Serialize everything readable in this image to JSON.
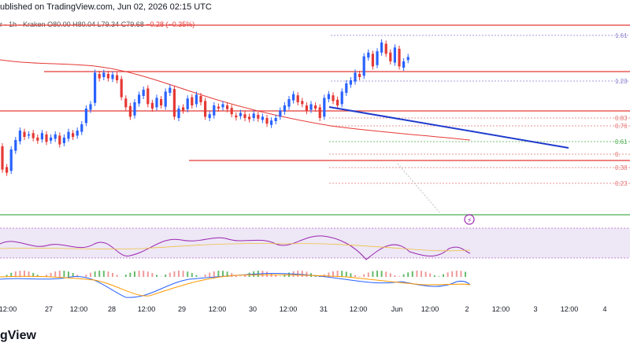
{
  "header": {
    "published": "ublished on TradingView.com, Jun 02, 2026 02:15 UTC",
    "symbol_fragment": "r",
    "interval": "1h",
    "exchange": "Kraken",
    "open": "O80.00",
    "high": "H80.04",
    "low": "L79.34",
    "close": "C79.68",
    "change": "−0.28 (−0.35%)"
  },
  "brand": {
    "text": "gView"
  },
  "colors": {
    "up": "#2962ff",
    "down": "#e53935",
    "resistance": "#e53935",
    "trendline": "#1f3bcc",
    "support": "#4caf50",
    "fib": "#e57373",
    "fib_mid": "#4caf50",
    "fib_top": "#8a7ed0",
    "rsi": "#9c27b0",
    "macd_line": "#2962ff",
    "signal_line": "#ff9800",
    "rsi_band": "#ede7f6"
  },
  "fib_labels": [
    "1.61",
    "1.23",
    "0.83",
    "0.76",
    "0.61",
    "0.",
    "0.38",
    "0.23"
  ],
  "x_axis_labels": [
    "12:00",
    "27",
    "12:00",
    "28",
    "12:00",
    "29",
    "12:00",
    "30",
    "12:00",
    "31",
    "12:00",
    "Jun",
    "12:00",
    "2",
    "12:00",
    "3",
    "12:00",
    "4"
  ],
  "chart_data": {
    "type": "candlestick",
    "interval": "1h",
    "x_start": "May 26 12:00",
    "x_end": "Jun 04",
    "x_tick_labels": [
      "12:00",
      "27",
      "12:00",
      "28",
      "12:00",
      "29",
      "12:00",
      "30",
      "12:00",
      "31",
      "12:00",
      "Jun",
      "12:00",
      "2",
      "12:00",
      "3",
      "12:00",
      "4"
    ],
    "fib_levels": [
      "1.61",
      "1.23",
      "0.83",
      "0.76",
      "0.61",
      "0.",
      "0.38",
      "0.23"
    ],
    "ohlc_last": {
      "open": 80.0,
      "high": 80.04,
      "low": 79.34,
      "close": 79.68,
      "change": -0.28,
      "change_pct": -0.35
    },
    "candles": [
      {
        "o": 105,
        "c": 68
      },
      {
        "o": 72,
        "c": 63
      },
      {
        "o": 66,
        "c": 100
      },
      {
        "o": 98,
        "c": 115
      },
      {
        "o": 113,
        "c": 130
      },
      {
        "o": 128,
        "c": 120
      },
      {
        "o": 122,
        "c": 124
      },
      {
        "o": 126,
        "c": 118
      },
      {
        "o": 119,
        "c": 114
      },
      {
        "o": 116,
        "c": 126
      },
      {
        "o": 124,
        "c": 112
      },
      {
        "o": 114,
        "c": 119
      },
      {
        "o": 117,
        "c": 124
      },
      {
        "o": 122,
        "c": 108
      },
      {
        "o": 110,
        "c": 119
      },
      {
        "o": 117,
        "c": 128
      },
      {
        "o": 126,
        "c": 120
      },
      {
        "o": 122,
        "c": 130
      },
      {
        "o": 128,
        "c": 140
      },
      {
        "o": 142,
        "c": 165
      },
      {
        "o": 163,
        "c": 172
      },
      {
        "o": 174,
        "c": 222
      },
      {
        "o": 220,
        "c": 213
      },
      {
        "o": 215,
        "c": 222
      },
      {
        "o": 220,
        "c": 213
      },
      {
        "o": 212,
        "c": 219
      },
      {
        "o": 218,
        "c": 210
      },
      {
        "o": 212,
        "c": 183
      },
      {
        "o": 181,
        "c": 167
      },
      {
        "o": 169,
        "c": 152
      },
      {
        "o": 154,
        "c": 175
      },
      {
        "o": 173,
        "c": 187
      },
      {
        "o": 185,
        "c": 195
      },
      {
        "o": 197,
        "c": 172
      },
      {
        "o": 174,
        "c": 165
      },
      {
        "o": 167,
        "c": 182
      },
      {
        "o": 180,
        "c": 170
      },
      {
        "o": 168,
        "c": 192
      },
      {
        "o": 190,
        "c": 198
      },
      {
        "o": 196,
        "c": 152
      },
      {
        "o": 150,
        "c": 165
      },
      {
        "o": 167,
        "c": 162
      },
      {
        "o": 164,
        "c": 181
      },
      {
        "o": 183,
        "c": 170
      },
      {
        "o": 172,
        "c": 187
      },
      {
        "o": 185,
        "c": 175
      },
      {
        "o": 177,
        "c": 152
      },
      {
        "o": 150,
        "c": 156
      },
      {
        "o": 154,
        "c": 170
      },
      {
        "o": 168,
        "c": 165
      },
      {
        "o": 167,
        "c": 172
      },
      {
        "o": 170,
        "c": 164
      },
      {
        "o": 166,
        "c": 156
      },
      {
        "o": 154,
        "c": 151
      },
      {
        "o": 153,
        "c": 158
      },
      {
        "o": 156,
        "c": 150
      },
      {
        "o": 152,
        "c": 148
      },
      {
        "o": 150,
        "c": 157
      },
      {
        "o": 155,
        "c": 149
      },
      {
        "o": 147,
        "c": 152
      },
      {
        "o": 150,
        "c": 141
      },
      {
        "o": 139,
        "c": 146
      },
      {
        "o": 145,
        "c": 150
      },
      {
        "o": 152,
        "c": 162
      },
      {
        "o": 160,
        "c": 170
      },
      {
        "o": 168,
        "c": 180
      },
      {
        "o": 178,
        "c": 188
      },
      {
        "o": 186,
        "c": 175
      },
      {
        "o": 177,
        "c": 172
      },
      {
        "o": 170,
        "c": 161
      },
      {
        "o": 163,
        "c": 172
      },
      {
        "o": 170,
        "c": 165
      },
      {
        "o": 167,
        "c": 150
      },
      {
        "o": 152,
        "c": 182
      },
      {
        "o": 180,
        "c": 188
      },
      {
        "o": 186,
        "c": 177
      },
      {
        "o": 179,
        "c": 170
      },
      {
        "o": 172,
        "c": 192
      },
      {
        "o": 190,
        "c": 205
      },
      {
        "o": 203,
        "c": 210
      },
      {
        "o": 208,
        "c": 222
      },
      {
        "o": 220,
        "c": 215
      },
      {
        "o": 217,
        "c": 248
      },
      {
        "o": 246,
        "c": 254
      },
      {
        "o": 252,
        "c": 232
      },
      {
        "o": 234,
        "c": 256
      },
      {
        "o": 254,
        "c": 270
      },
      {
        "o": 268,
        "c": 252
      },
      {
        "o": 254,
        "c": 240
      },
      {
        "o": 238,
        "c": 262
      },
      {
        "o": 260,
        "c": 232
      },
      {
        "o": 230,
        "c": 240
      },
      {
        "o": 242,
        "c": 247
      }
    ]
  }
}
